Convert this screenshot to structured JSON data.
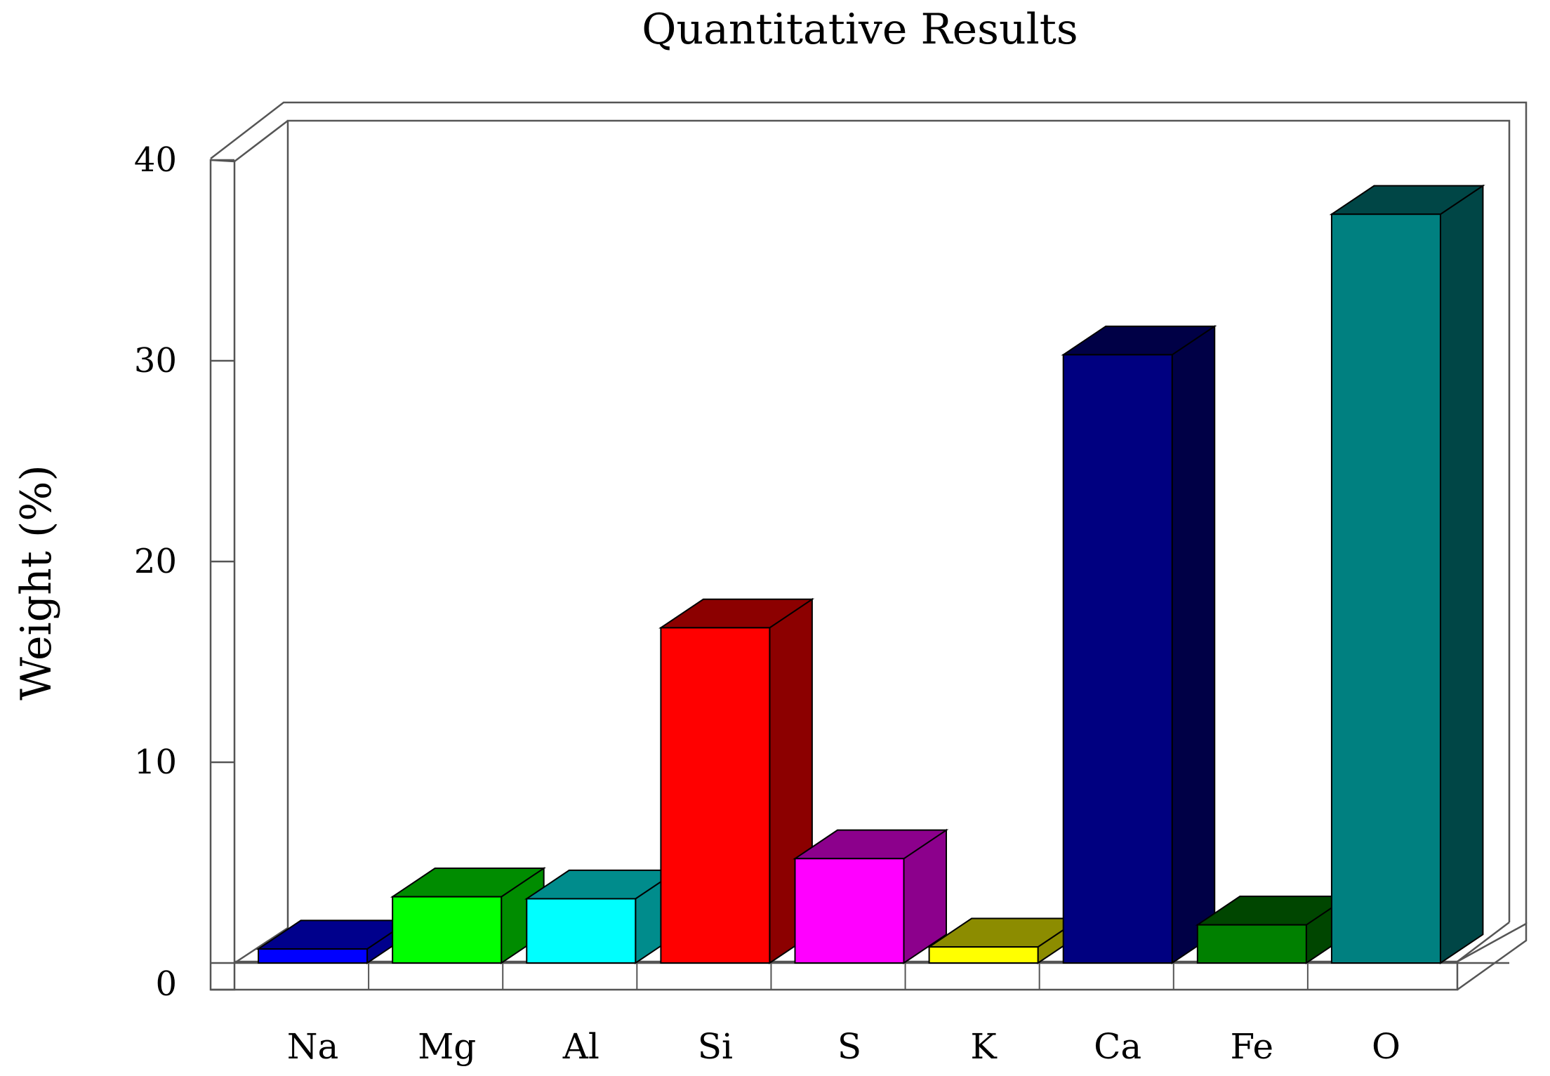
{
  "chart_data": {
    "type": "bar",
    "title": "Quantitative Results",
    "xlabel": "",
    "ylabel": "Weight (%)",
    "ylim": [
      0,
      40
    ],
    "yticks": [
      0,
      10,
      20,
      30,
      40
    ],
    "categories": [
      "Na",
      "Mg",
      "Al",
      "Si",
      "S",
      "K",
      "Ca",
      "Fe",
      "O"
    ],
    "values": [
      0.7,
      3.3,
      3.2,
      16.7,
      5.2,
      0.8,
      30.3,
      1.9,
      37.3
    ],
    "colors": [
      "#0000FF",
      "#00FF00",
      "#00FFFF",
      "#FF0000",
      "#FF00FF",
      "#FFFF00",
      "#000080",
      "#008000",
      "#008080"
    ],
    "grid": false,
    "legend": "none",
    "style": "3d"
  }
}
